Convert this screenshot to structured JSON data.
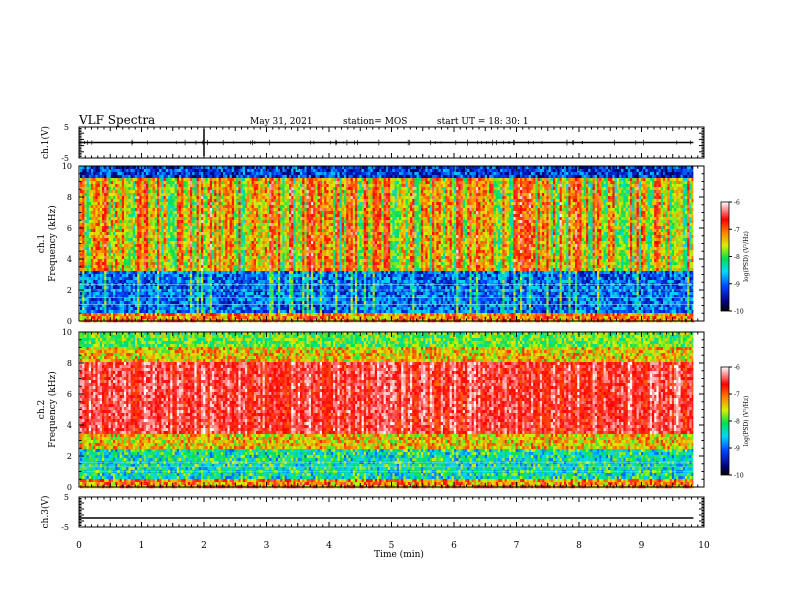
{
  "header": {
    "title": "VLF Spectra",
    "date": "May 31, 2021",
    "station": "station= MOS",
    "start": "start  UT  =   18: 30: 1"
  },
  "chart_data": [
    {
      "type": "line",
      "panel": "ch1-waveform",
      "ylabel": "ch.1(V)",
      "ylim": [
        -5,
        5
      ],
      "yticks": [
        "5",
        "-5"
      ],
      "xlim": [
        0,
        10
      ],
      "series": [
        {
          "values_note": "",
          "level": 0
        }
      ]
    },
    {
      "type": "heatmap",
      "panel": "ch1-spectrogram",
      "ylabel_line1": "ch.1",
      "ylabel_line2": "Frequency (kHz)",
      "ylim": [
        0,
        10
      ],
      "yticks": [
        "0",
        "2",
        "4",
        "6",
        "8",
        "10"
      ],
      "xlim": [
        0,
        10
      ],
      "data_end_min": 9.83,
      "colorbar": {
        "min": -10,
        "max": -6,
        "ticks": [
          "-6",
          "-7",
          "-8",
          "-9",
          "-10"
        ],
        "label": "log(PSD) (V²/Hz)"
      }
    },
    {
      "type": "heatmap",
      "panel": "ch2-spectrogram",
      "ylabel_line1": "ch.2",
      "ylabel_line2": "Frequency (kHz)",
      "ylim": [
        0,
        10
      ],
      "yticks": [
        "0",
        "2",
        "4",
        "6",
        "8",
        "10"
      ],
      "xlim": [
        0,
        10
      ],
      "data_end_min": 9.83,
      "colorbar": {
        "min": -10,
        "max": -6,
        "ticks": [
          "-6",
          "-7",
          "-8",
          "-9",
          "-10"
        ],
        "label": "log(PSD) (V²/Hz)"
      }
    },
    {
      "type": "line",
      "panel": "ch3-waveform",
      "ylabel": "ch.3(V)",
      "ylim": [
        -5,
        5
      ],
      "yticks": [
        "5",
        "-5"
      ],
      "xlim": [
        0,
        10
      ],
      "series": [
        {
          "level": -2
        }
      ]
    }
  ],
  "xaxis": {
    "label": "Time  (min)",
    "ticks": [
      "0",
      "1",
      "2",
      "3",
      "4",
      "5",
      "6",
      "7",
      "8",
      "9",
      "10"
    ]
  }
}
